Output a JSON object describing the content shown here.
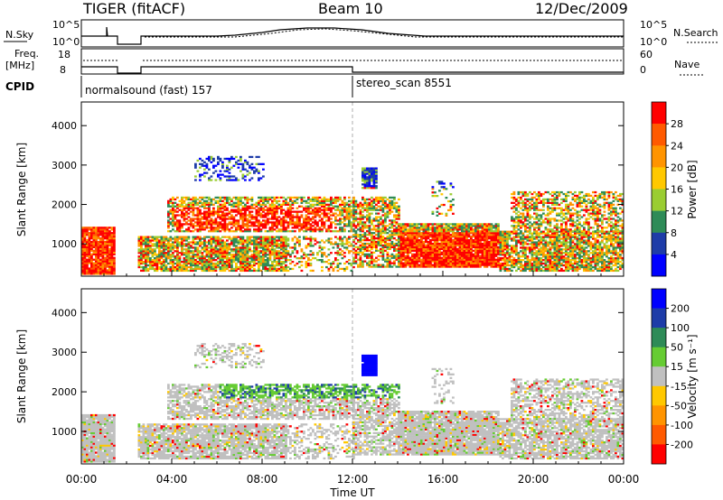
{
  "header": {
    "station": "TIGER (fitACF)",
    "beam": "Beam 10",
    "date": "12/Dec/2009"
  },
  "strip": {
    "nsky_label": "N.Sky",
    "nsearch_label": "N.Search",
    "nsky_ticks": [
      "10^5",
      "10^0"
    ],
    "nsearch_ticks": [
      "10^5",
      "10^0"
    ],
    "freq_label_1": "Freq.",
    "freq_label_2": "[MHz]",
    "freq_ticks": [
      "18",
      "8"
    ],
    "nave_label": "Nave",
    "nave_ticks": [
      "60",
      "0"
    ],
    "cpid_label": "CPID",
    "cpid_segments": [
      {
        "label": "normalsound (fast) 157",
        "start": 0,
        "end": 12
      },
      {
        "label": "stereo_scan 8551",
        "start": 12,
        "end": 24
      }
    ]
  },
  "chart_data": [
    {
      "type": "heatmap",
      "name": "power-panel",
      "ylabel": "Slant Range [km]",
      "xlabel": "",
      "ylim": [
        180,
        4600
      ],
      "xlim": [
        0,
        24
      ],
      "yticks": [
        "1000",
        "2000",
        "3000",
        "4000"
      ],
      "colorbar": {
        "label": "Power [dB]",
        "ticks": [
          "28",
          "24",
          "20",
          "16",
          "12",
          "8",
          "4"
        ],
        "colors": [
          "#ff0000",
          "#ff5a00",
          "#ff9400",
          "#ffc800",
          "#9acd32",
          "#2e8b57",
          "#1e3ca8",
          "#0000ff"
        ]
      }
    },
    {
      "type": "heatmap",
      "name": "velocity-panel",
      "ylabel": "Slant Range [km]",
      "xlabel": "Time UT",
      "ylim": [
        180,
        4600
      ],
      "xlim": [
        0,
        24
      ],
      "yticks": [
        "1000",
        "2000",
        "3000",
        "4000"
      ],
      "xticks": [
        "00:00",
        "04:00",
        "08:00",
        "12:00",
        "16:00",
        "20:00",
        "00:00"
      ],
      "colorbar": {
        "label": "Velocity [m s⁻¹]",
        "ticks": [
          "200",
          "100",
          "50",
          "15",
          "-15",
          "-50",
          "-100",
          "-200"
        ],
        "colors": [
          "#0000ff",
          "#1e3ca8",
          "#2e8b57",
          "#66cc33",
          "#c0c0c0",
          "#ffc800",
          "#ff9400",
          "#ff5a00",
          "#ff0000"
        ]
      }
    }
  ]
}
